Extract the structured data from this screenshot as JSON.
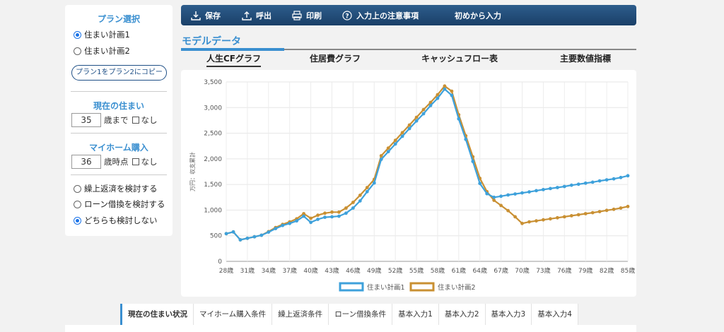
{
  "sidebar": {
    "plan_title": "プラン選択",
    "plans": [
      {
        "label": "住まい計画1",
        "checked": true
      },
      {
        "label": "住まい計画2",
        "checked": false
      }
    ],
    "copy_button": "プラン1をプラン2にコピー",
    "current_home": {
      "title": "現在の住まい",
      "value": "35",
      "suffix": "歳まで",
      "none_label": "なし"
    },
    "purchase": {
      "title": "マイホーム購入",
      "value": "36",
      "suffix": "歳時点",
      "none_label": "なし"
    },
    "options": [
      {
        "label": "繰上返済を検討する",
        "checked": false
      },
      {
        "label": "ローン借換を検討する",
        "checked": false
      },
      {
        "label": "どちらも検討しない",
        "checked": true
      }
    ]
  },
  "toolbar": {
    "save": "保存",
    "load": "呼出",
    "print": "印刷",
    "notes": "入力上の注意事項",
    "reset": "初めから入力"
  },
  "model": {
    "title": "モデルデータ",
    "tabs": [
      "人生CFグラフ",
      "住居費グラフ",
      "キャッシュフロー表",
      "主要数値指標"
    ]
  },
  "bottom_tabs": [
    "現在の住まい状況",
    "マイホーム購入条件",
    "繰上返済条件",
    "ローン借換条件",
    "基本入力1",
    "基本入力2",
    "基本入力3",
    "基本入力4"
  ],
  "colors": {
    "series1": "#3ea1db",
    "series2": "#c99033",
    "accent": "#3a8fd0",
    "toolbar": "#1f4a76"
  },
  "chart_data": {
    "type": "line",
    "ylabel": "万円：収支累計",
    "ylim": [
      0,
      3500
    ],
    "yticks": [
      "0",
      "500",
      "1,000",
      "1,500",
      "2,000",
      "2,500",
      "3,000",
      "3,500"
    ],
    "xlim": [
      28,
      85
    ],
    "xticks": [
      "28歳",
      "31歳",
      "34歳",
      "37歳",
      "40歳",
      "43歳",
      "46歳",
      "49歳",
      "52歳",
      "55歳",
      "58歳",
      "61歳",
      "64歳",
      "67歳",
      "70歳",
      "73歳",
      "76歳",
      "79歳",
      "82歳",
      "85歳"
    ],
    "series": [
      {
        "name": "住まい計画1",
        "color": "#3ea1db",
        "points": [
          [
            28,
            540
          ],
          [
            29,
            575
          ],
          [
            30,
            420
          ],
          [
            31,
            450
          ],
          [
            32,
            480
          ],
          [
            33,
            510
          ],
          [
            34,
            570
          ],
          [
            35,
            640
          ],
          [
            36,
            700
          ],
          [
            37,
            740
          ],
          [
            38,
            790
          ],
          [
            39,
            880
          ],
          [
            40,
            760
          ],
          [
            41,
            820
          ],
          [
            42,
            860
          ],
          [
            43,
            870
          ],
          [
            44,
            880
          ],
          [
            45,
            940
          ],
          [
            46,
            1040
          ],
          [
            47,
            1180
          ],
          [
            48,
            1360
          ],
          [
            49,
            1530
          ],
          [
            50,
            1990
          ],
          [
            51,
            2140
          ],
          [
            52,
            2290
          ],
          [
            53,
            2440
          ],
          [
            54,
            2590
          ],
          [
            55,
            2740
          ],
          [
            56,
            2880
          ],
          [
            57,
            3040
          ],
          [
            58,
            3180
          ],
          [
            59,
            3360
          ],
          [
            60,
            3240
          ],
          [
            61,
            2780
          ],
          [
            62,
            2380
          ],
          [
            63,
            1950
          ],
          [
            64,
            1520
          ],
          [
            65,
            1320
          ],
          [
            66,
            1250
          ],
          [
            67,
            1270
          ],
          [
            68,
            1295
          ],
          [
            69,
            1315
          ],
          [
            70,
            1335
          ],
          [
            71,
            1355
          ],
          [
            72,
            1380
          ],
          [
            73,
            1400
          ],
          [
            74,
            1420
          ],
          [
            75,
            1440
          ],
          [
            76,
            1460
          ],
          [
            77,
            1485
          ],
          [
            78,
            1505
          ],
          [
            79,
            1525
          ],
          [
            80,
            1545
          ],
          [
            81,
            1570
          ],
          [
            82,
            1590
          ],
          [
            83,
            1610
          ],
          [
            84,
            1635
          ],
          [
            85,
            1670
          ]
        ]
      },
      {
        "name": "住まい計画2",
        "color": "#c99033",
        "points": [
          [
            28,
            540
          ],
          [
            29,
            575
          ],
          [
            30,
            420
          ],
          [
            31,
            450
          ],
          [
            32,
            480
          ],
          [
            33,
            510
          ],
          [
            34,
            580
          ],
          [
            35,
            660
          ],
          [
            36,
            720
          ],
          [
            37,
            770
          ],
          [
            38,
            830
          ],
          [
            39,
            930
          ],
          [
            40,
            840
          ],
          [
            41,
            900
          ],
          [
            42,
            940
          ],
          [
            43,
            960
          ],
          [
            44,
            960
          ],
          [
            45,
            1040
          ],
          [
            46,
            1150
          ],
          [
            47,
            1290
          ],
          [
            48,
            1440
          ],
          [
            49,
            1600
          ],
          [
            50,
            2060
          ],
          [
            51,
            2210
          ],
          [
            52,
            2360
          ],
          [
            53,
            2510
          ],
          [
            54,
            2660
          ],
          [
            55,
            2810
          ],
          [
            56,
            2960
          ],
          [
            57,
            3100
          ],
          [
            58,
            3250
          ],
          [
            59,
            3420
          ],
          [
            60,
            3320
          ],
          [
            61,
            2860
          ],
          [
            62,
            2450
          ],
          [
            63,
            2040
          ],
          [
            64,
            1620
          ],
          [
            65,
            1360
          ],
          [
            66,
            1190
          ],
          [
            67,
            1090
          ],
          [
            68,
            990
          ],
          [
            69,
            870
          ],
          [
            70,
            740
          ],
          [
            71,
            770
          ],
          [
            72,
            790
          ],
          [
            73,
            810
          ],
          [
            74,
            830
          ],
          [
            75,
            850
          ],
          [
            76,
            870
          ],
          [
            77,
            890
          ],
          [
            78,
            910
          ],
          [
            79,
            930
          ],
          [
            80,
            950
          ],
          [
            81,
            970
          ],
          [
            82,
            995
          ],
          [
            83,
            1015
          ],
          [
            84,
            1040
          ],
          [
            85,
            1070
          ]
        ]
      }
    ],
    "legend_position": "bottom"
  }
}
